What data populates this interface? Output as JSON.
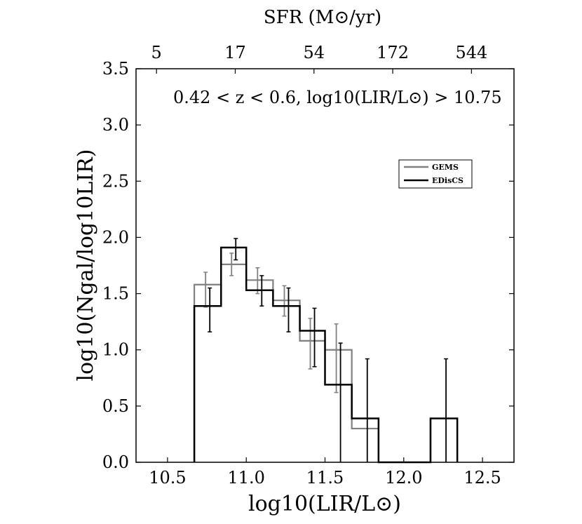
{
  "chart_data": {
    "type": "step-histogram",
    "title": "",
    "xlabel": "log10(LIR/L⊙)",
    "ylabel": "log10(Ngal/log10LIR)",
    "top_axis_label": "SFR (M⊙/yr)",
    "annotation": "0.42 < z < 0.6, log10(LIR/L⊙) > 10.75",
    "xlim": [
      10.3,
      12.7
    ],
    "ylim": [
      0.0,
      3.5
    ],
    "xticks": [
      "10.5",
      "11.0",
      "11.5",
      "12.0",
      "12.5"
    ],
    "yticks": [
      "0.0",
      "0.5",
      "1.0",
      "1.5",
      "2.0",
      "2.5",
      "3.0",
      "3.5"
    ],
    "top_ticks": [
      {
        "label": "5",
        "x": 10.43
      },
      {
        "label": "17",
        "x": 10.93
      },
      {
        "label": "54",
        "x": 11.43
      },
      {
        "label": "172",
        "x": 11.93
      },
      {
        "label": "544",
        "x": 12.43
      }
    ],
    "legend": {
      "placement": "upper-right",
      "entries": [
        {
          "name": "GEMS",
          "color": "#808080"
        },
        {
          "name": "EDisCS",
          "color": "#000000"
        }
      ]
    },
    "series": [
      {
        "name": "GEMS",
        "color": "#808080",
        "bins": [
          {
            "x0": 10.67,
            "x1": 10.84,
            "y": 1.58,
            "err_lo": 1.38,
            "err_hi": 1.69
          },
          {
            "x0": 10.84,
            "x1": 11.0,
            "y": 1.76,
            "err_lo": 1.66,
            "err_hi": 1.86
          },
          {
            "x0": 11.0,
            "x1": 11.17,
            "y": 1.62,
            "err_lo": 1.5,
            "err_hi": 1.73
          },
          {
            "x0": 11.17,
            "x1": 11.34,
            "y": 1.44,
            "err_lo": 1.3,
            "err_hi": 1.57
          },
          {
            "x0": 11.34,
            "x1": 11.5,
            "y": 1.08,
            "err_lo": 0.83,
            "err_hi": 1.28
          },
          {
            "x0": 11.5,
            "x1": 11.67,
            "y": 1.0,
            "err_lo": 0.62,
            "err_hi": 1.23
          },
          {
            "x0": 11.67,
            "x1": 11.84,
            "y": 0.3,
            "err_lo": 0.0,
            "err_hi": 0.0
          }
        ]
      },
      {
        "name": "EDisCS",
        "color": "#000000",
        "bins": [
          {
            "x0": 10.67,
            "x1": 10.84,
            "y": 1.39,
            "err_lo": 1.16,
            "err_hi": 1.55
          },
          {
            "x0": 10.84,
            "x1": 11.0,
            "y": 1.91,
            "err_lo": 1.8,
            "err_hi": 1.99
          },
          {
            "x0": 11.0,
            "x1": 11.17,
            "y": 1.53,
            "err_lo": 1.39,
            "err_hi": 1.66
          },
          {
            "x0": 11.17,
            "x1": 11.34,
            "y": 1.39,
            "err_lo": 1.16,
            "err_hi": 1.55
          },
          {
            "x0": 11.34,
            "x1": 11.5,
            "y": 1.17,
            "err_lo": 0.85,
            "err_hi": 1.37
          },
          {
            "x0": 11.5,
            "x1": 11.67,
            "y": 0.69,
            "err_lo": 0.0,
            "err_hi": 1.06
          },
          {
            "x0": 11.67,
            "x1": 11.84,
            "y": 0.39,
            "err_lo": 0.0,
            "err_hi": 0.92
          },
          {
            "x0": 11.84,
            "x1": 12.01,
            "y": 0.0,
            "err_lo": 0.0,
            "err_hi": 0.0
          },
          {
            "x0": 12.01,
            "x1": 12.17,
            "y": 0.0,
            "err_lo": 0.0,
            "err_hi": 0.0
          },
          {
            "x0": 12.17,
            "x1": 12.34,
            "y": 0.39,
            "err_lo": 0.0,
            "err_hi": 0.92
          }
        ]
      }
    ]
  }
}
